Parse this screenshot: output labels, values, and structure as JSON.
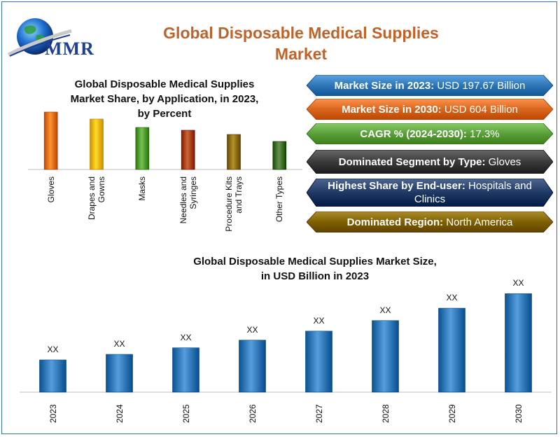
{
  "colors": {
    "title_orange": "#c0632a",
    "border_blue": "#2e75b6",
    "bar_blue": "#2e75b6"
  },
  "logo": {
    "text": "MMR",
    "icon": "globe-icon"
  },
  "title": {
    "line1": "Global Disposable Medical Supplies",
    "line2": "Market"
  },
  "panels": [
    {
      "label": "Market Size in 2023:",
      "value": "USD 197.67 Billion",
      "color": "#2e75b6"
    },
    {
      "label": "Market Size in 2030:",
      "value": "USD 604 Billion",
      "color": "#d9651e"
    },
    {
      "label": "CAGR % (2024-2030):",
      "value": "17.3%",
      "color": "#5a9e3a"
    },
    {
      "label": "Dominated Segment by Type:",
      "value": "Gloves",
      "color": "#3a3a3a"
    },
    {
      "label": "Highest Share by End-user:",
      "value": "Hospitals and Clinics",
      "color": "#1f3864"
    },
    {
      "label": "Dominated Region:",
      "value": "North America",
      "color": "#7f6000"
    }
  ],
  "chart_data": [
    {
      "type": "bar",
      "title": "Global Disposable Medical Supplies Market Share, by Application, in 2023, by Percent",
      "title_lines": [
        "Global Disposable Medical Supplies",
        "Market Share, by Application, in 2023,",
        "by Percent"
      ],
      "categories": [
        "Gloves",
        "Drapes and Gowns",
        "Masks",
        "Needles and Syringes",
        "Procedure Kits and Trays",
        "Other Types"
      ],
      "category_lines": [
        [
          "Gloves"
        ],
        [
          "Drapes and",
          "Gowns"
        ],
        [
          "Masks"
        ],
        [
          "Needles and",
          "Syringes"
        ],
        [
          "Procedure Kits",
          "and Trays"
        ],
        [
          "Other Types"
        ]
      ],
      "values": [
        82,
        72,
        60,
        56,
        50,
        40
      ],
      "ylim": [
        0,
        100
      ],
      "bar_colors": [
        "#e46c0a",
        "#f0b400",
        "#4f9a2c",
        "#a53d0c",
        "#8a6a00",
        "#3e6b26"
      ],
      "grid": false,
      "legend": "none"
    },
    {
      "type": "bar",
      "title": "Global Disposable Medical Supplies Market Size, in USD Billion in 2023",
      "title_lines": [
        "Global Disposable Medical Supplies Market Size,",
        "in USD Billion in 2023"
      ],
      "categories": [
        "2023",
        "2024",
        "2025",
        "2026",
        "2027",
        "2028",
        "2029",
        "2030"
      ],
      "values": [
        197.67,
        231.9,
        272.0,
        319.1,
        374.3,
        439.1,
        515.1,
        604
      ],
      "data_labels": [
        "XX",
        "XX",
        "XX",
        "XX",
        "XX",
        "XX",
        "XX",
        "XX"
      ],
      "ylim": [
        0,
        730
      ],
      "bar_color": "#2e75b6",
      "grid": false,
      "legend": "none"
    }
  ]
}
